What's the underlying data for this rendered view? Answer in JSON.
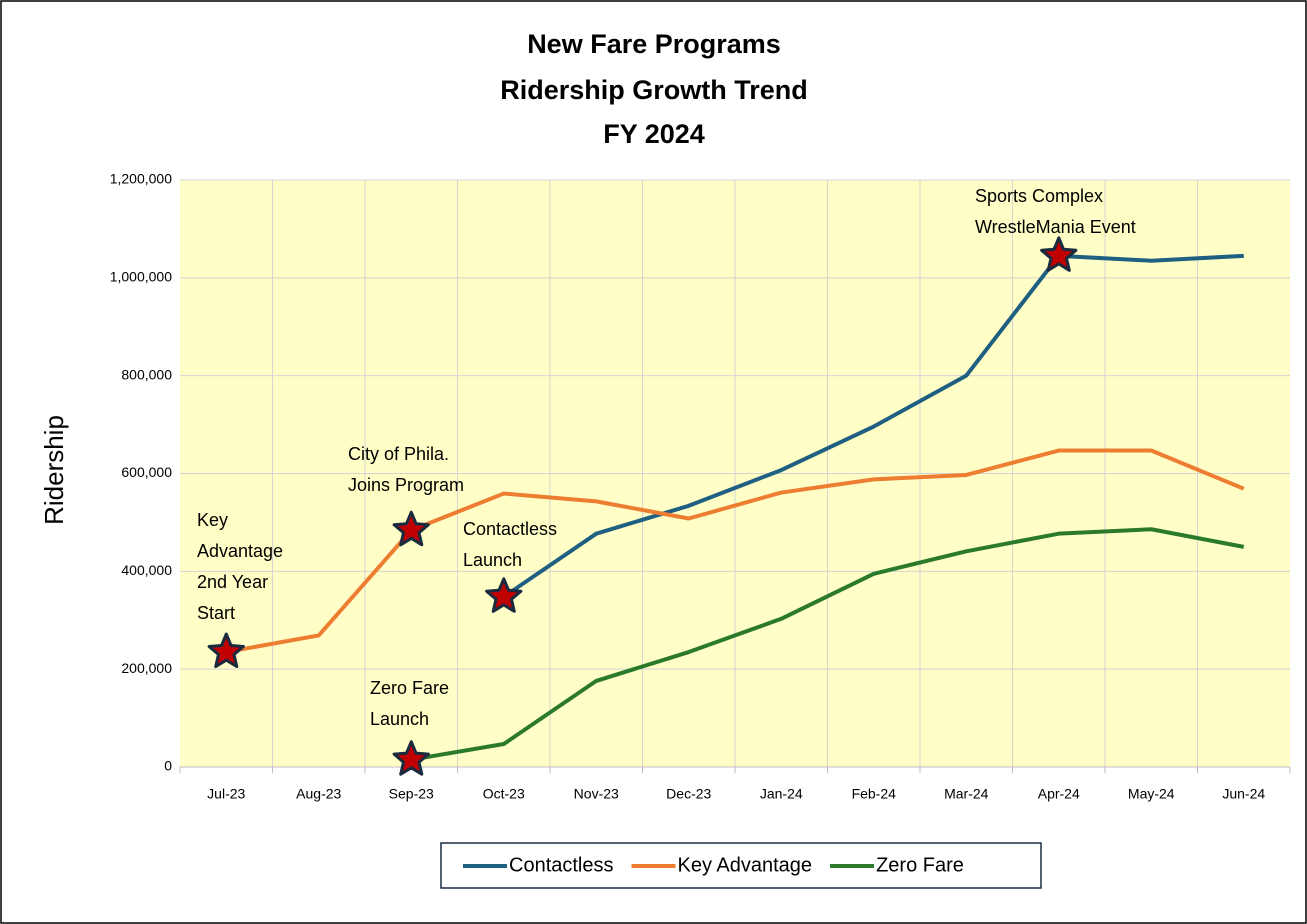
{
  "chart_data": {
    "type": "line",
    "title": [
      "New Fare Programs",
      "Ridership Growth Trend",
      "FY 2024"
    ],
    "y_label": "Ridership",
    "categories": [
      "Jul-23",
      "Aug-23",
      "Sep-23",
      "Oct-23",
      "Nov-23",
      "Dec-23",
      "Jan-24",
      "Feb-24",
      "Mar-24",
      "Apr-24",
      "May-24",
      "Jun-24"
    ],
    "series": [
      {
        "name": "Contactless",
        "color": "#1f5f82",
        "values": [
          null,
          null,
          null,
          348000,
          477000,
          534000,
          607000,
          696000,
          800000,
          1045000,
          1035000,
          1045000
        ]
      },
      {
        "name": "Key Advantage",
        "color": "#ed7d31",
        "values": [
          235000,
          269000,
          484000,
          559000,
          543000,
          508000,
          561000,
          588000,
          597000,
          647000,
          647000,
          569000
        ]
      },
      {
        "name": "Zero Fare",
        "color": "#2b7a2b",
        "values": [
          null,
          null,
          15000,
          47000,
          176000,
          235000,
          303000,
          395000,
          441000,
          477000,
          486000,
          450000
        ]
      }
    ],
    "ylim": [
      0,
      1200000
    ],
    "yticks": [
      0,
      {
        "value": 200000,
        "label": "200,000"
      },
      {
        "value": 400000,
        "label": "400,000"
      },
      {
        "value": 600000,
        "label": "600,000"
      },
      {
        "value": 800000,
        "label": "800,000"
      },
      {
        "value": 1000000,
        "label": "1,000,000"
      },
      {
        "value": 1200000,
        "label": "1,200,000"
      }
    ],
    "grid": true,
    "legend": "bottom",
    "annotations": [
      [
        "Key",
        "Advantage",
        "2nd Year",
        "Start"
      ],
      [
        "City of Phila.",
        "Joins Program"
      ],
      [
        "Contactless",
        "Launch"
      ],
      [
        "Zero Fare",
        "Launch"
      ],
      [
        "Sports Complex",
        "WrestleMania Event"
      ]
    ]
  }
}
